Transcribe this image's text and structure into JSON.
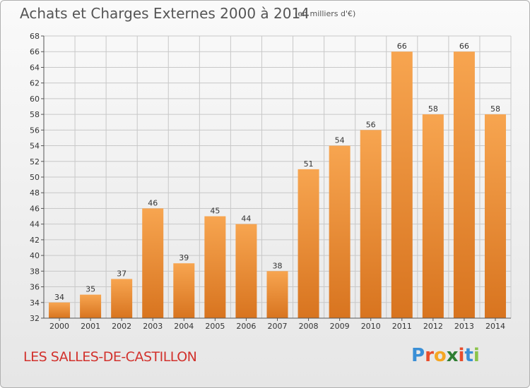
{
  "title": "Achats et Charges Externes 2000 à 2014",
  "subtitle": "(en milliers d'€)",
  "town": "LES SALLES-DE-CASTILLON",
  "logo": {
    "text": "Proxiti",
    "letters": [
      {
        "char": "P",
        "color": "#3a8fd6"
      },
      {
        "char": "r",
        "color": "#e84d2c"
      },
      {
        "char": "o",
        "color": "#f5a623"
      },
      {
        "char": "x",
        "color": "#2e7d32"
      },
      {
        "char": "i",
        "color": "#e84d2c"
      },
      {
        "char": "t",
        "color": "#3a8fd6"
      },
      {
        "char": "i",
        "color": "#8bc34a"
      }
    ]
  },
  "chart_data": {
    "type": "bar",
    "categories": [
      "2000",
      "2001",
      "2002",
      "2003",
      "2004",
      "2005",
      "2006",
      "2007",
      "2008",
      "2009",
      "2010",
      "2011",
      "2012",
      "2013",
      "2014"
    ],
    "values": [
      34,
      35,
      37,
      46,
      39,
      45,
      44,
      38,
      51,
      54,
      56,
      66,
      58,
      66,
      58
    ],
    "ylim": [
      32,
      68
    ],
    "yticks": [
      32,
      34,
      36,
      38,
      40,
      42,
      44,
      46,
      48,
      50,
      52,
      54,
      56,
      58,
      60,
      62,
      64,
      66,
      68
    ],
    "grid": true,
    "bar_color_top": "#f7a550",
    "bar_color_bottom": "#d8741f",
    "grid_color": "#c8c8c8"
  }
}
